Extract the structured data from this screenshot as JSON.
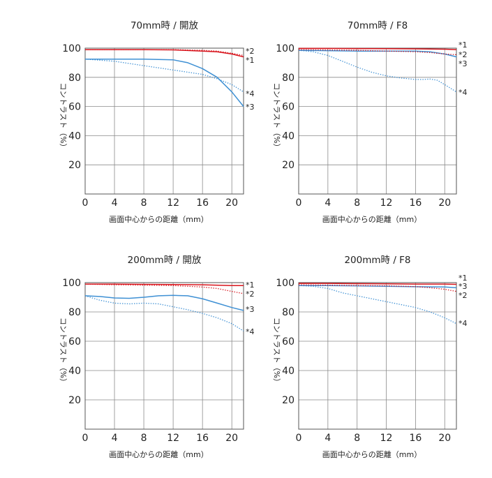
{
  "chart_data": [
    {
      "type": "line",
      "title": "70mm時 / 開放",
      "xlabel": "画面中心からの距離（mm）",
      "ylabel": "コントラスト（%）",
      "xlim": [
        0,
        21.6
      ],
      "ylim": [
        0,
        100
      ],
      "xticks": [
        "0",
        "4",
        "8",
        "12",
        "16",
        "20"
      ],
      "yticks": [
        "20",
        "40",
        "60",
        "80",
        "100"
      ],
      "grid": true,
      "series": [
        {
          "name": "*1",
          "color": "#d8141c",
          "style": "solid",
          "x": [
            0,
            4,
            8,
            12,
            16,
            18,
            20,
            21.6
          ],
          "y": [
            99,
            99,
            99,
            98.8,
            98,
            97.5,
            96,
            94
          ]
        },
        {
          "name": "*2",
          "color": "#d8141c",
          "style": "dotted",
          "x": [
            0,
            4,
            8,
            12,
            16,
            18,
            20,
            21.6
          ],
          "y": [
            99,
            99,
            99,
            99,
            98.5,
            98,
            96.5,
            95
          ]
        },
        {
          "name": "*3",
          "color": "#3e90d4",
          "style": "solid",
          "x": [
            0,
            4,
            8,
            12,
            14,
            16,
            18,
            20,
            21.6
          ],
          "y": [
            92.5,
            92.5,
            92.5,
            92,
            90,
            86,
            80,
            70,
            60
          ]
        },
        {
          "name": "*4",
          "color": "#3e90d4",
          "style": "dotted",
          "x": [
            0,
            4,
            8,
            12,
            16,
            18,
            20,
            21.6
          ],
          "y": [
            92.5,
            91,
            88,
            85,
            82,
            79,
            75,
            70
          ]
        }
      ],
      "series_labels": [
        "*2",
        "*1",
        "*4",
        "*3"
      ]
    },
    {
      "type": "line",
      "title": "70mm時 / F8",
      "xlabel": "画面中心からの距離（mm）",
      "ylabel": "コントラスト（%）",
      "xlim": [
        0,
        21.6
      ],
      "ylim": [
        0,
        100
      ],
      "xticks": [
        "0",
        "4",
        "8",
        "12",
        "16",
        "20"
      ],
      "yticks": [
        "20",
        "40",
        "60",
        "80",
        "100"
      ],
      "grid": true,
      "series": [
        {
          "name": "*1",
          "color": "#d8141c",
          "style": "solid",
          "x": [
            0,
            4,
            8,
            12,
            16,
            20,
            21.6
          ],
          "y": [
            99.8,
            99.8,
            99.7,
            99.6,
            99.5,
            99.3,
            99
          ]
        },
        {
          "name": "*2",
          "color": "#d8141c",
          "style": "dotted",
          "x": [
            0,
            4,
            8,
            12,
            16,
            18,
            20,
            21.6
          ],
          "y": [
            99,
            98.8,
            98.5,
            98,
            97.5,
            97,
            96,
            95.5
          ]
        },
        {
          "name": "*3",
          "color": "#3e90d4",
          "style": "solid",
          "x": [
            0,
            4,
            8,
            12,
            16,
            18,
            20,
            21.6
          ],
          "y": [
            98.5,
            98.3,
            98,
            98,
            98,
            97.5,
            96,
            94
          ]
        },
        {
          "name": "*4",
          "color": "#3e90d4",
          "style": "dotted",
          "x": [
            0,
            2,
            4,
            6,
            8,
            10,
            12,
            14,
            16,
            17,
            18,
            19,
            20,
            21.6
          ],
          "y": [
            98.5,
            97.5,
            95,
            91,
            87,
            83.5,
            81,
            79.5,
            78.5,
            78.5,
            78.8,
            78,
            75,
            70
          ]
        }
      ],
      "series_labels": [
        "*1",
        "*2",
        "*3",
        "*4"
      ]
    },
    {
      "type": "line",
      "title": "200mm時 / 開放",
      "xlabel": "画面中心からの距離（mm）",
      "ylabel": "コントラスト（%）",
      "xlim": [
        0,
        21.6
      ],
      "ylim": [
        0,
        100
      ],
      "xticks": [
        "0",
        "4",
        "8",
        "12",
        "16",
        "20"
      ],
      "yticks": [
        "20",
        "40",
        "60",
        "80",
        "100"
      ],
      "grid": true,
      "series": [
        {
          "name": "*1",
          "color": "#d8141c",
          "style": "solid",
          "x": [
            0,
            4,
            8,
            12,
            16,
            20,
            21.6
          ],
          "y": [
            99,
            99,
            98.8,
            98.7,
            98.5,
            98,
            98
          ]
        },
        {
          "name": "*2",
          "color": "#d8141c",
          "style": "dotted",
          "x": [
            0,
            4,
            8,
            12,
            16,
            18,
            20,
            21.6
          ],
          "y": [
            99,
            98.5,
            98.3,
            98,
            97,
            96,
            94,
            92.5
          ]
        },
        {
          "name": "*3",
          "color": "#3e90d4",
          "style": "solid",
          "x": [
            0,
            2,
            4,
            6,
            8,
            10,
            12,
            14,
            16,
            18,
            20,
            21.6
          ],
          "y": [
            91,
            90.5,
            89.5,
            89.3,
            90,
            91,
            91.3,
            91,
            89,
            86,
            83,
            81
          ]
        },
        {
          "name": "*4",
          "color": "#3e90d4",
          "style": "dotted",
          "x": [
            0,
            2,
            4,
            6,
            8,
            10,
            12,
            14,
            16,
            18,
            20,
            21.6
          ],
          "y": [
            91,
            88,
            86,
            85.5,
            86,
            85.5,
            83.5,
            81.5,
            79,
            76,
            72,
            67
          ]
        }
      ],
      "series_labels": [
        "*1",
        "*2",
        "*3",
        "*4"
      ]
    },
    {
      "type": "line",
      "title": "200mm時 / F8",
      "xlabel": "画面中心からの距離（mm）",
      "ylabel": "コントラスト（%）",
      "xlim": [
        0,
        21.6
      ],
      "ylim": [
        0,
        100
      ],
      "xticks": [
        "0",
        "4",
        "8",
        "12",
        "16",
        "20"
      ],
      "yticks": [
        "20",
        "40",
        "60",
        "80",
        "100"
      ],
      "grid": true,
      "series": [
        {
          "name": "*1",
          "color": "#d8141c",
          "style": "solid",
          "x": [
            0,
            4,
            8,
            12,
            16,
            20,
            21.6
          ],
          "y": [
            99.5,
            99.5,
            99.3,
            99.2,
            99,
            99,
            98.8
          ]
        },
        {
          "name": "*2",
          "color": "#d8141c",
          "style": "dotted",
          "x": [
            0,
            4,
            8,
            12,
            16,
            18,
            20,
            21.6
          ],
          "y": [
            98.5,
            98.3,
            98,
            97.8,
            97.3,
            96.5,
            95.5,
            94
          ]
        },
        {
          "name": "*3",
          "color": "#3e90d4",
          "style": "solid",
          "x": [
            0,
            4,
            8,
            12,
            16,
            20,
            21.6
          ],
          "y": [
            98,
            98,
            97.8,
            97.5,
            97.2,
            97,
            96.5
          ]
        },
        {
          "name": "*4",
          "color": "#3e90d4",
          "style": "dotted",
          "x": [
            0,
            2,
            4,
            6,
            8,
            10,
            12,
            14,
            16,
            18,
            20,
            21.6
          ],
          "y": [
            98,
            97.5,
            96,
            93,
            91,
            89,
            87,
            85,
            83,
            80,
            76,
            72
          ]
        }
      ],
      "series_labels": [
        "*1",
        "*3",
        "*2",
        "*4"
      ]
    }
  ]
}
